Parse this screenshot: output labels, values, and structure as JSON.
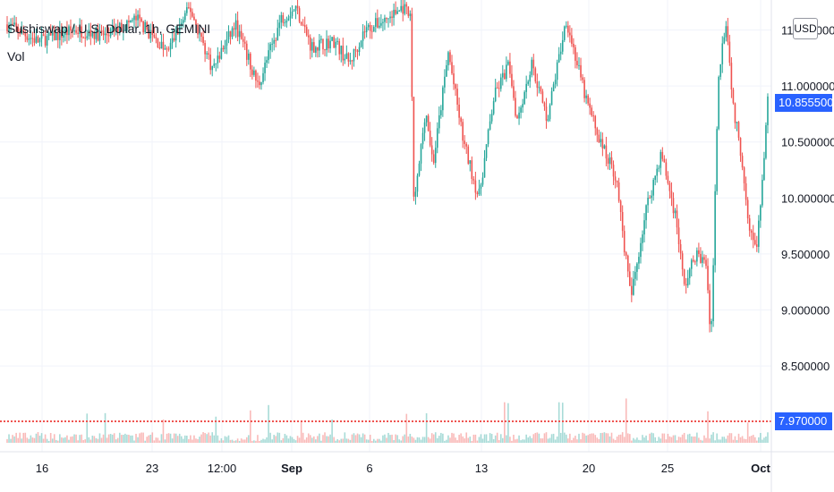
{
  "header": {
    "title": "Sushiswap / U.S. Dollar, 1h, GEMINI",
    "volume_label": "Vol"
  },
  "axis": {
    "currency_button": "USD"
  },
  "price_tags": {
    "last_price": "10.855500",
    "low_price": "7.970000"
  },
  "colors": {
    "up": "#26a69a",
    "down": "#ef5350",
    "last_price_tag": "#2962ff",
    "grid": "#f0f3fa",
    "dotted_line": "#ef5350"
  },
  "chart_data": {
    "type": "candlestick",
    "symbol": "SUSHI/USD",
    "interval": "1h",
    "exchange": "GEMINI",
    "y_axis": {
      "ticks": [
        {
          "value": 11.5,
          "label": "11.500000"
        },
        {
          "value": 11.0,
          "label": "11.000000"
        },
        {
          "value": 10.5,
          "label": "10.500000"
        },
        {
          "value": 10.0,
          "label": "10.000000"
        },
        {
          "value": 9.5,
          "label": "9.500000"
        },
        {
          "value": 9.0,
          "label": "9.000000"
        },
        {
          "value": 8.5,
          "label": "8.500000"
        }
      ],
      "range": [
        7.8,
        11.8
      ]
    },
    "x_axis": {
      "ticks": [
        {
          "label": "16",
          "bold": false
        },
        {
          "label": "23",
          "bold": false
        },
        {
          "label": "12:00",
          "bold": false
        },
        {
          "label": "Sep",
          "bold": true
        },
        {
          "label": "6",
          "bold": false
        },
        {
          "label": "13",
          "bold": false
        },
        {
          "label": "20",
          "bold": false
        },
        {
          "label": "25",
          "bold": false
        },
        {
          "label": "Oct",
          "bold": true
        }
      ]
    },
    "keyframes": [
      {
        "t": 0.0,
        "p": 11.55
      },
      {
        "t": 0.04,
        "p": 11.4
      },
      {
        "t": 0.09,
        "p": 11.5
      },
      {
        "t": 0.13,
        "p": 11.45
      },
      {
        "t": 0.17,
        "p": 11.6
      },
      {
        "t": 0.21,
        "p": 11.3
      },
      {
        "t": 0.24,
        "p": 11.7
      },
      {
        "t": 0.27,
        "p": 11.15
      },
      {
        "t": 0.3,
        "p": 11.55
      },
      {
        "t": 0.33,
        "p": 11.0
      },
      {
        "t": 0.36,
        "p": 11.6
      },
      {
        "t": 0.38,
        "p": 11.7
      },
      {
        "t": 0.4,
        "p": 11.35
      },
      {
        "t": 0.43,
        "p": 11.4
      },
      {
        "t": 0.45,
        "p": 11.2
      },
      {
        "t": 0.47,
        "p": 11.5
      },
      {
        "t": 0.5,
        "p": 11.6
      },
      {
        "t": 0.52,
        "p": 11.7
      },
      {
        "t": 0.53,
        "p": 11.6
      },
      {
        "t": 0.535,
        "p": 9.9
      },
      {
        "t": 0.55,
        "p": 10.8
      },
      {
        "t": 0.56,
        "p": 10.3
      },
      {
        "t": 0.58,
        "p": 11.3
      },
      {
        "t": 0.6,
        "p": 10.5
      },
      {
        "t": 0.62,
        "p": 10.0
      },
      {
        "t": 0.64,
        "p": 10.9
      },
      {
        "t": 0.66,
        "p": 11.2
      },
      {
        "t": 0.67,
        "p": 10.7
      },
      {
        "t": 0.69,
        "p": 11.2
      },
      {
        "t": 0.71,
        "p": 10.7
      },
      {
        "t": 0.735,
        "p": 11.6
      },
      {
        "t": 0.76,
        "p": 10.9
      },
      {
        "t": 0.78,
        "p": 10.5
      },
      {
        "t": 0.8,
        "p": 10.2
      },
      {
        "t": 0.82,
        "p": 9.1
      },
      {
        "t": 0.84,
        "p": 9.9
      },
      {
        "t": 0.86,
        "p": 10.4
      },
      {
        "t": 0.88,
        "p": 9.8
      },
      {
        "t": 0.89,
        "p": 9.2
      },
      {
        "t": 0.905,
        "p": 9.5
      },
      {
        "t": 0.92,
        "p": 9.4
      },
      {
        "t": 0.925,
        "p": 8.6
      },
      {
        "t": 0.935,
        "p": 11.1
      },
      {
        "t": 0.945,
        "p": 11.6
      },
      {
        "t": 0.955,
        "p": 10.8
      },
      {
        "t": 0.965,
        "p": 10.4
      },
      {
        "t": 0.975,
        "p": 9.8
      },
      {
        "t": 0.985,
        "p": 9.5
      },
      {
        "t": 0.99,
        "p": 9.9
      },
      {
        "t": 1.0,
        "p": 10.85
      }
    ]
  }
}
